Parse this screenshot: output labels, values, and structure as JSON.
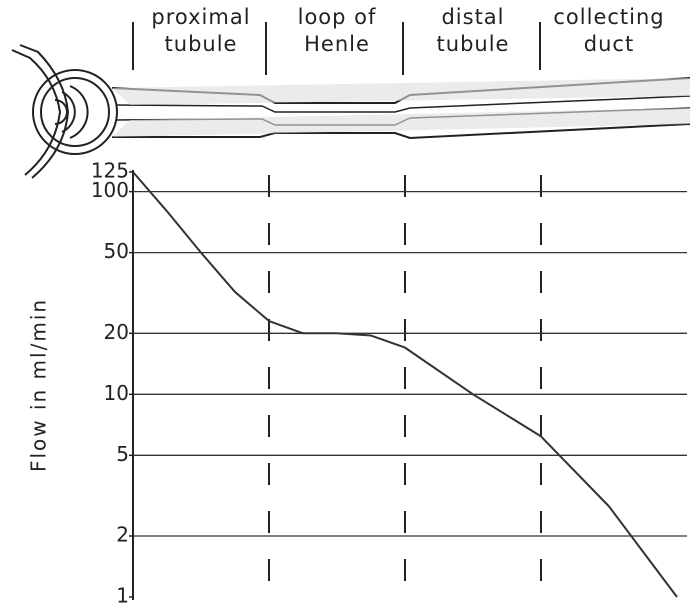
{
  "chart_data": {
    "type": "line",
    "categories": [
      "proximal tubule",
      "loop of Henle",
      "distal tubule",
      "collecting duct"
    ],
    "y_label": "Flow in ml/min",
    "x": [
      0,
      0.25,
      0.5,
      0.75,
      1,
      1.25,
      1.5,
      1.75,
      2,
      2.5,
      3,
      3.5,
      4
    ],
    "values": [
      125,
      80,
      50,
      32,
      23,
      20,
      20,
      19.5,
      17,
      10,
      6.2,
      2.8,
      1
    ],
    "color": "#333333",
    "xlim": [
      0,
      4
    ],
    "ylim": [
      1,
      125
    ],
    "yticks": [
      1,
      2,
      5,
      10,
      20,
      50,
      100,
      125
    ],
    "y_scale": "log",
    "grid": true
  }
}
